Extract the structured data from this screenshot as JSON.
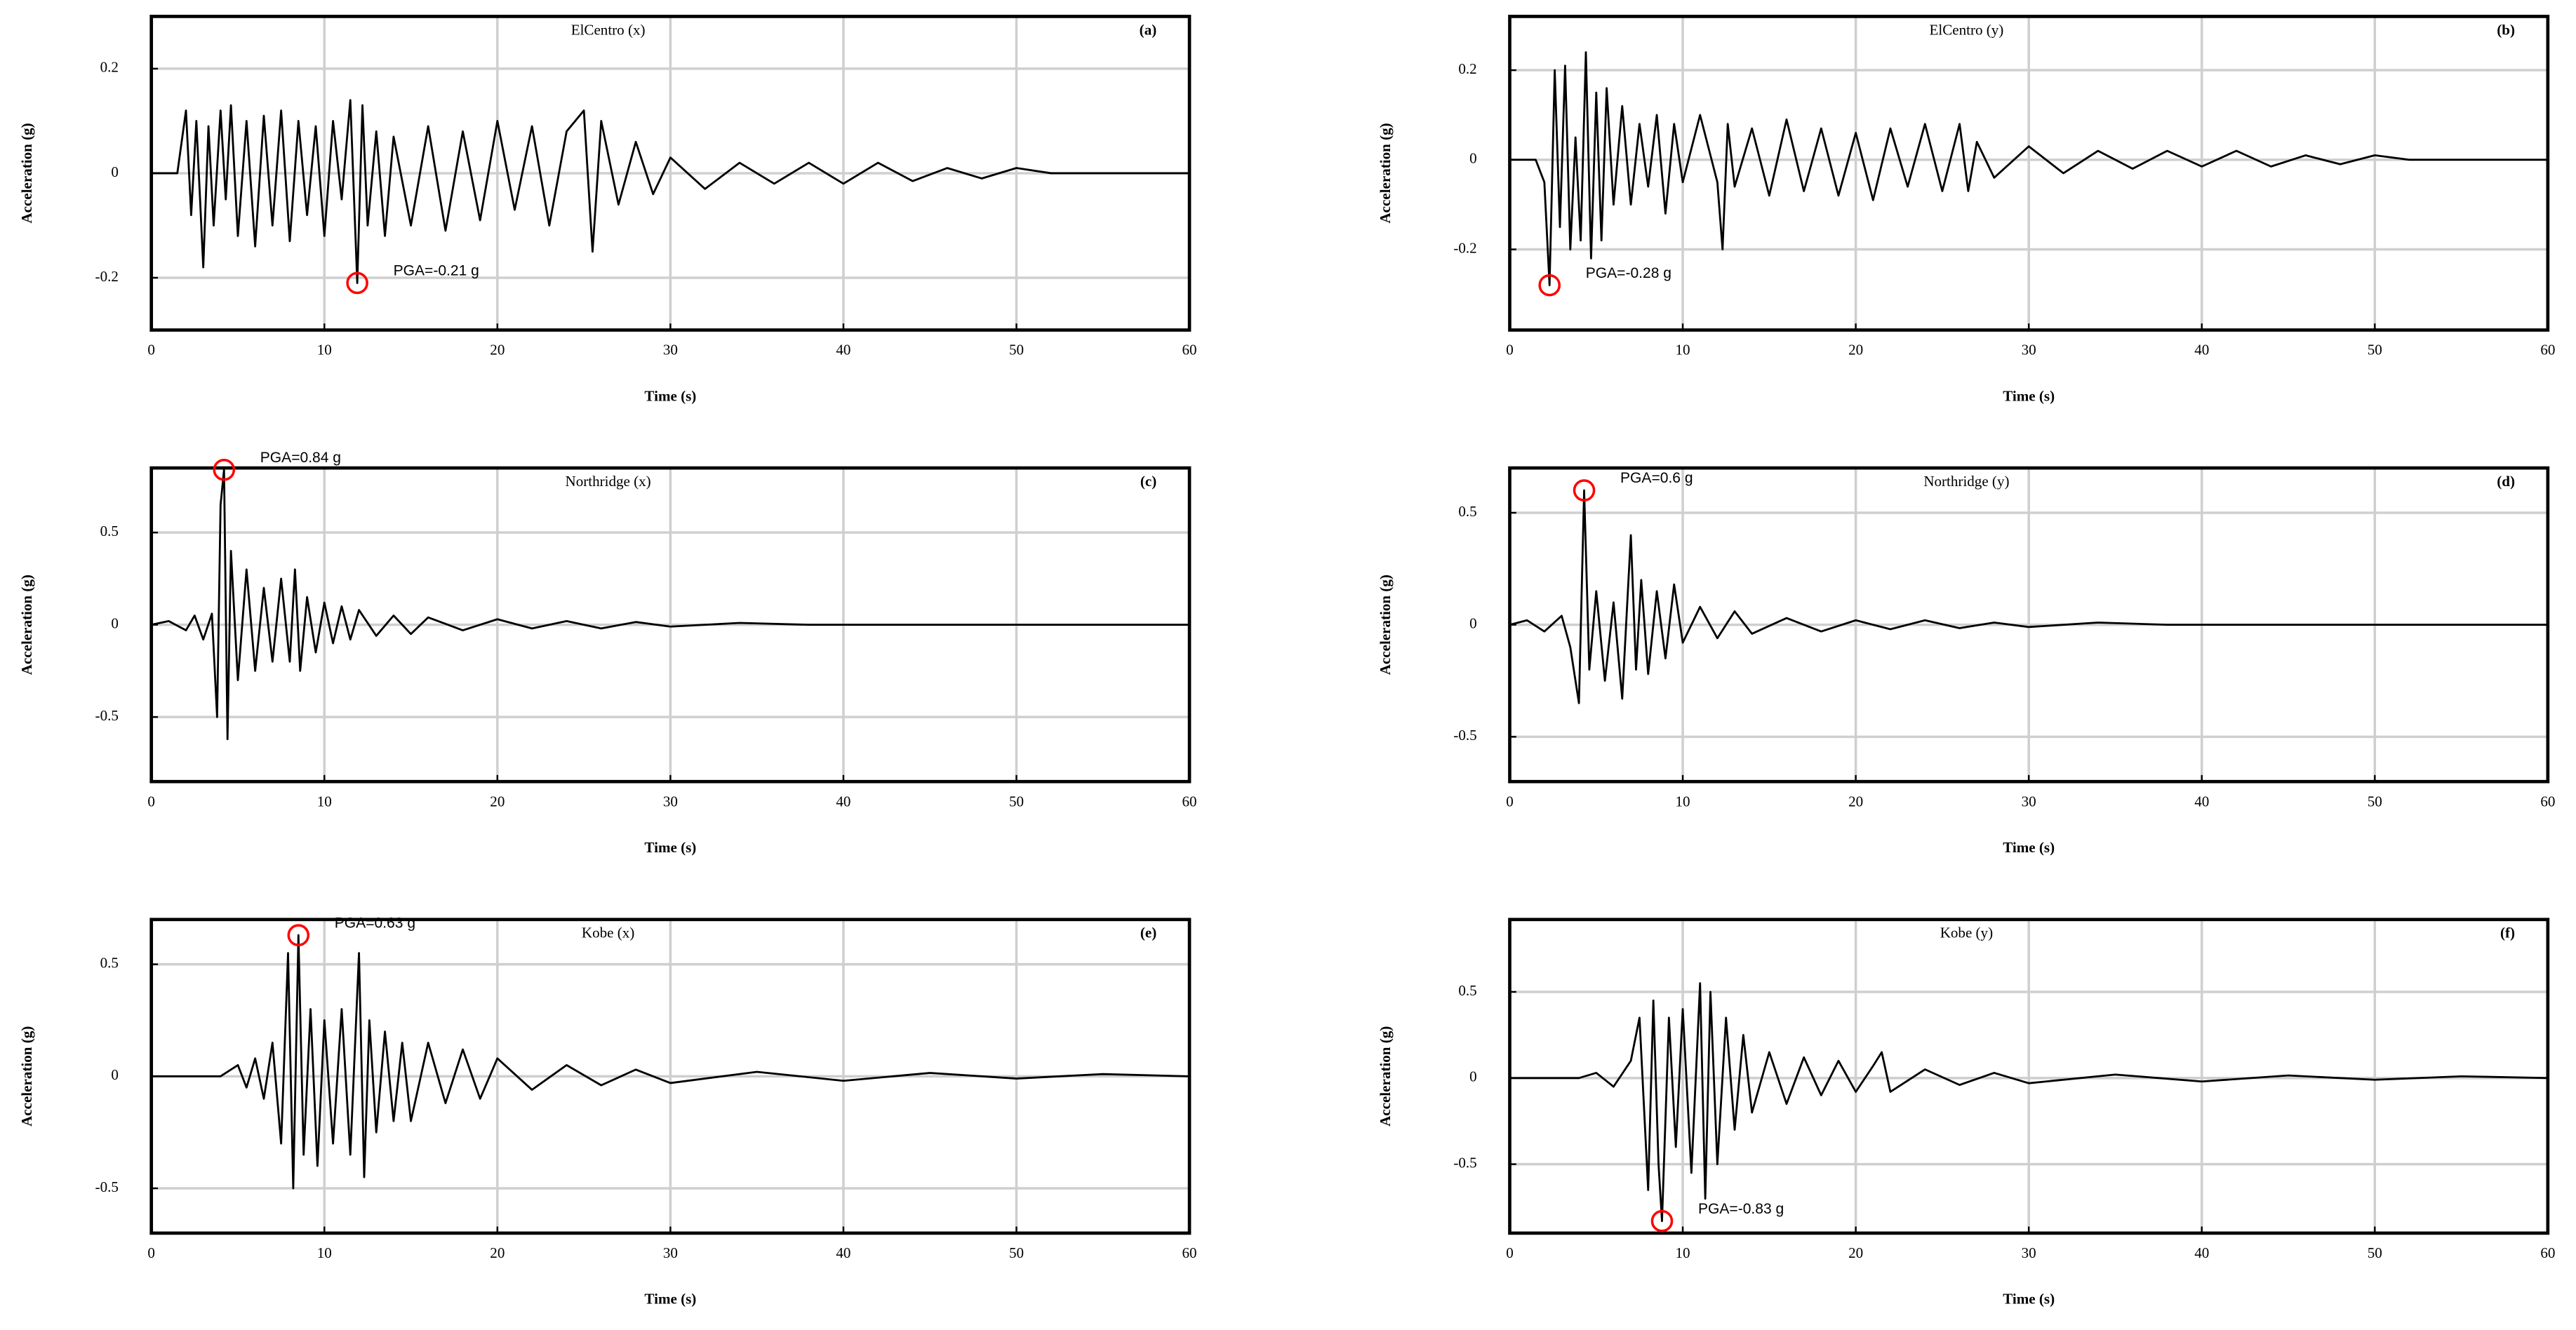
{
  "chart_data": [
    {
      "type": "line",
      "title": "ElCentro (x)",
      "panel_label": "(a)",
      "xlabel": "Time (s)",
      "ylabel": "Acceleration (g)",
      "color": "#000000",
      "grid": true,
      "xlim": [
        0,
        60
      ],
      "xticks": [
        0,
        10,
        20,
        30,
        40,
        50,
        60
      ],
      "ylim": [
        -0.3,
        0.3
      ],
      "yticks": [
        -0.2,
        0,
        0.2
      ],
      "x": [
        0,
        1.5,
        2,
        2.3,
        2.6,
        3,
        3.3,
        3.6,
        4,
        4.3,
        4.6,
        5,
        5.5,
        6,
        6.5,
        7,
        7.5,
        8,
        8.5,
        9,
        9.5,
        10,
        10.5,
        11,
        11.5,
        11.9,
        12.2,
        12.5,
        13,
        13.5,
        14,
        15,
        16,
        17,
        18,
        19,
        20,
        21,
        22,
        23,
        24,
        25,
        25.5,
        26,
        27,
        28,
        29,
        30,
        32,
        34,
        36,
        38,
        40,
        42,
        44,
        46,
        48,
        50,
        52,
        54,
        60
      ],
      "values": [
        0,
        0,
        0.12,
        -0.08,
        0.1,
        -0.18,
        0.09,
        -0.1,
        0.12,
        -0.05,
        0.13,
        -0.12,
        0.1,
        -0.14,
        0.11,
        -0.1,
        0.12,
        -0.13,
        0.1,
        -0.08,
        0.09,
        -0.12,
        0.1,
        -0.05,
        0.14,
        -0.21,
        0.13,
        -0.1,
        0.08,
        -0.12,
        0.07,
        -0.1,
        0.09,
        -0.11,
        0.08,
        -0.09,
        0.1,
        -0.07,
        0.09,
        -0.1,
        0.08,
        0.12,
        -0.15,
        0.1,
        -0.06,
        0.06,
        -0.04,
        0.03,
        -0.03,
        0.02,
        -0.02,
        0.02,
        -0.02,
        0.02,
        -0.015,
        0.01,
        -0.01,
        0.01,
        0,
        0,
        0
      ],
      "annotation": {
        "text": "PGA=-0.21 g",
        "x": 11.9,
        "y": -0.21,
        "color": "#ff0000"
      }
    },
    {
      "type": "line",
      "title": "ElCentro (y)",
      "panel_label": "(b)",
      "xlabel": "Time (s)",
      "ylabel": "Acceleration (g)",
      "color": "#000000",
      "grid": true,
      "xlim": [
        0,
        60
      ],
      "xticks": [
        0,
        10,
        20,
        30,
        40,
        50,
        60
      ],
      "ylim": [
        -0.38,
        0.32
      ],
      "yticks": [
        -0.2,
        0,
        0.2
      ],
      "x": [
        0,
        1.5,
        2,
        2.3,
        2.6,
        2.9,
        3.2,
        3.5,
        3.8,
        4.1,
        4.4,
        4.7,
        5,
        5.3,
        5.6,
        6,
        6.5,
        7,
        7.5,
        8,
        8.5,
        9,
        9.5,
        10,
        11,
        12,
        12.3,
        12.6,
        13,
        14,
        15,
        16,
        17,
        18,
        19,
        20,
        21,
        22,
        23,
        24,
        25,
        26,
        26.5,
        27,
        28,
        30,
        32,
        34,
        36,
        38,
        40,
        42,
        44,
        46,
        48,
        50,
        52,
        53,
        60
      ],
      "values": [
        0,
        0,
        -0.05,
        -0.28,
        0.2,
        -0.15,
        0.21,
        -0.2,
        0.05,
        -0.18,
        0.24,
        -0.22,
        0.15,
        -0.18,
        0.16,
        -0.1,
        0.12,
        -0.1,
        0.08,
        -0.06,
        0.1,
        -0.12,
        0.08,
        -0.05,
        0.1,
        -0.05,
        -0.2,
        0.08,
        -0.06,
        0.07,
        -0.08,
        0.09,
        -0.07,
        0.07,
        -0.08,
        0.06,
        -0.09,
        0.07,
        -0.06,
        0.08,
        -0.07,
        0.08,
        -0.07,
        0.04,
        -0.04,
        0.03,
        -0.03,
        0.02,
        -0.02,
        0.02,
        -0.015,
        0.02,
        -0.015,
        0.01,
        -0.01,
        0.01,
        0,
        0,
        0
      ],
      "annotation": {
        "text": "PGA=-0.28 g",
        "x": 2.3,
        "y": -0.28,
        "color": "#ff0000"
      }
    },
    {
      "type": "line",
      "title": "Northridge (x)",
      "panel_label": "(c)",
      "xlabel": "Time (s)",
      "ylabel": "Acceleration (g)",
      "color": "#000000",
      "grid": true,
      "xlim": [
        0,
        60
      ],
      "xticks": [
        0,
        10,
        20,
        30,
        40,
        50,
        60
      ],
      "ylim": [
        -0.85,
        0.85
      ],
      "yticks": [
        -0.5,
        0,
        0.5
      ],
      "x": [
        0,
        1,
        2,
        2.5,
        3,
        3.5,
        3.8,
        4,
        4.2,
        4.4,
        4.6,
        5,
        5.5,
        6,
        6.5,
        7,
        7.5,
        8,
        8.3,
        8.6,
        9,
        9.5,
        10,
        10.5,
        11,
        11.5,
        12,
        13,
        14,
        15,
        16,
        18,
        20,
        22,
        24,
        26,
        28,
        30,
        34,
        38,
        60
      ],
      "values": [
        0,
        0.02,
        -0.03,
        0.05,
        -0.08,
        0.06,
        -0.5,
        0.65,
        0.84,
        -0.62,
        0.4,
        -0.3,
        0.3,
        -0.25,
        0.2,
        -0.2,
        0.25,
        -0.2,
        0.3,
        -0.25,
        0.15,
        -0.15,
        0.12,
        -0.1,
        0.1,
        -0.08,
        0.08,
        -0.06,
        0.05,
        -0.05,
        0.04,
        -0.03,
        0.03,
        -0.02,
        0.02,
        -0.02,
        0.015,
        -0.01,
        0.01,
        0,
        0
      ],
      "annotation": {
        "text": "PGA=0.84 g",
        "x": 4.2,
        "y": 0.84,
        "color": "#ff0000"
      }
    },
    {
      "type": "line",
      "title": "Northridge (y)",
      "panel_label": "(d)",
      "xlabel": "Time (s)",
      "ylabel": "Acceleration (g)",
      "color": "#000000",
      "grid": true,
      "xlim": [
        0,
        60
      ],
      "xticks": [
        0,
        10,
        20,
        30,
        40,
        50,
        60
      ],
      "ylim": [
        -0.7,
        0.7
      ],
      "yticks": [
        -0.5,
        0,
        0.5
      ],
      "x": [
        0,
        1,
        2,
        3,
        3.5,
        4,
        4.3,
        4.6,
        5,
        5.5,
        6,
        6.5,
        7,
        7.3,
        7.6,
        8,
        8.5,
        9,
        9.5,
        10,
        11,
        12,
        13,
        14,
        16,
        18,
        20,
        22,
        24,
        26,
        28,
        30,
        34,
        38,
        60
      ],
      "values": [
        0,
        0.02,
        -0.03,
        0.04,
        -0.1,
        -0.35,
        0.6,
        -0.2,
        0.15,
        -0.25,
        0.1,
        -0.33,
        0.4,
        -0.2,
        0.2,
        -0.22,
        0.15,
        -0.15,
        0.18,
        -0.08,
        0.08,
        -0.06,
        0.06,
        -0.04,
        0.03,
        -0.03,
        0.02,
        -0.02,
        0.02,
        -0.015,
        0.01,
        -0.01,
        0.01,
        0,
        0
      ],
      "annotation": {
        "text": "PGA=0.6 g",
        "x": 4.3,
        "y": 0.6,
        "color": "#ff0000"
      }
    },
    {
      "type": "line",
      "title": "Kobe (x)",
      "panel_label": "(e)",
      "xlabel": "Time (s)",
      "ylabel": "Acceleration (g)",
      "color": "#000000",
      "grid": true,
      "xlim": [
        0,
        60
      ],
      "xticks": [
        0,
        10,
        20,
        30,
        40,
        50,
        60
      ],
      "ylim": [
        -0.7,
        0.7
      ],
      "yticks": [
        -0.5,
        0,
        0.5
      ],
      "x": [
        0,
        4,
        5,
        5.5,
        6,
        6.5,
        7,
        7.5,
        7.9,
        8.2,
        8.5,
        8.8,
        9.2,
        9.6,
        10,
        10.5,
        11,
        11.5,
        12,
        12.3,
        12.6,
        13,
        13.5,
        14,
        14.5,
        15,
        16,
        17,
        18,
        19,
        20,
        22,
        24,
        26,
        28,
        30,
        35,
        40,
        45,
        50,
        55,
        60
      ],
      "values": [
        0,
        0,
        0.05,
        -0.05,
        0.08,
        -0.1,
        0.15,
        -0.3,
        0.55,
        -0.5,
        0.63,
        -0.35,
        0.3,
        -0.4,
        0.25,
        -0.3,
        0.3,
        -0.35,
        0.55,
        -0.45,
        0.25,
        -0.25,
        0.2,
        -0.2,
        0.15,
        -0.2,
        0.15,
        -0.12,
        0.12,
        -0.1,
        0.08,
        -0.06,
        0.05,
        -0.04,
        0.03,
        -0.03,
        0.02,
        -0.02,
        0.015,
        -0.01,
        0.01,
        0
      ],
      "annotation": {
        "text": "PGA=0.63 g",
        "x": 8.5,
        "y": 0.63,
        "color": "#ff0000"
      }
    },
    {
      "type": "line",
      "title": "Kobe (y)",
      "panel_label": "(f)",
      "xlabel": "Time (s)",
      "ylabel": "Acceleration (g)",
      "color": "#000000",
      "grid": true,
      "xlim": [
        0,
        60
      ],
      "xticks": [
        0,
        10,
        20,
        30,
        40,
        50,
        60
      ],
      "ylim": [
        -0.9,
        0.92
      ],
      "yticks": [
        -0.5,
        0,
        0.5
      ],
      "x": [
        0,
        4,
        5,
        6,
        7,
        7.5,
        8,
        8.3,
        8.6,
        8.8,
        9.2,
        9.6,
        10,
        10.5,
        11,
        11.3,
        11.6,
        12,
        12.5,
        13,
        13.5,
        14,
        15,
        16,
        17,
        18,
        19,
        20,
        21,
        21.5,
        22,
        24,
        26,
        28,
        30,
        35,
        40,
        45,
        50,
        55,
        60
      ],
      "values": [
        0,
        0,
        0.03,
        -0.05,
        0.1,
        0.35,
        -0.65,
        0.45,
        -0.5,
        -0.83,
        0.35,
        -0.4,
        0.4,
        -0.55,
        0.55,
        -0.7,
        0.5,
        -0.5,
        0.35,
        -0.3,
        0.25,
        -0.2,
        0.15,
        -0.15,
        0.12,
        -0.1,
        0.1,
        -0.08,
        0.07,
        0.15,
        -0.08,
        0.05,
        -0.04,
        0.03,
        -0.03,
        0.02,
        -0.02,
        0.015,
        -0.01,
        0.01,
        0
      ],
      "annotation": {
        "text": "PGA=-0.83 g",
        "x": 8.8,
        "y": -0.83,
        "color": "#ff0000"
      }
    }
  ]
}
